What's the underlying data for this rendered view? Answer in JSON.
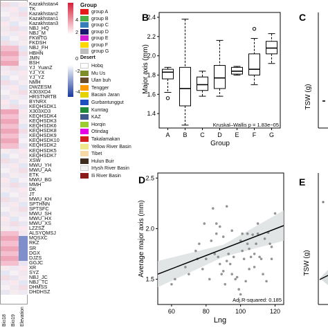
{
  "heatmap": {
    "rows": [
      "Kazakhstan4",
      "TK",
      "Kazakhstan2",
      "Kazakhstan1",
      "Kazakhstan3",
      "NBJ_HQ",
      "NBJ_M",
      "FKWTG",
      "FKDSH",
      "NBJ_FH",
      "HBHN",
      "JMN",
      "BSH",
      "YJ_YuanZ",
      "YJ_YX",
      "YJ_YZ",
      "NMH",
      "DWZESM",
      "X303XD4",
      "HRSTNRTB",
      "BYNRX",
      "KEQHSDK1",
      "X303XD3",
      "KEQHSDK4",
      "KEQHSDK3",
      "KEQHSDK6",
      "KEQHSDK8",
      "KEQHSDK9",
      "KEQHSDK10",
      "KEQHSDK2",
      "KEQHSDK5",
      "KEQHSDK7",
      "XSW",
      "MWU_YH",
      "MWU_AA",
      "ETK",
      "MWU_BG",
      "MMH",
      "DK",
      "JT",
      "MWU_KH",
      "SPTHNN",
      "SPTSFC",
      "MWU_SH",
      "MWU_HX",
      "MWU_XS",
      "LZZSZ",
      "ALSYQMSJ",
      "MQSXC",
      "RKZ",
      "SR",
      "DGX",
      "DJZS",
      "GGJC",
      "XR",
      "SYZ",
      "NBJ_JC",
      "NBJ_TC",
      "DHMSS",
      "DHDHSZ"
    ],
    "columns": [
      "Bio18",
      "Bio19",
      "Elevation"
    ],
    "value_scale": {
      "max": 4,
      "mid_high": 2,
      "zero": 0,
      "mid_low": -2,
      "min": -4
    },
    "colors": {
      "high": "#d6203a",
      "zero": "#ffffff",
      "low": "#1a3a9c"
    }
  },
  "legend": {
    "group_title": "Group",
    "groups": [
      {
        "label": "group A",
        "color": "#e41a1c"
      },
      {
        "label": "group B",
        "color": "#4daf4a"
      },
      {
        "label": "group C",
        "color": "#377eb8"
      },
      {
        "label": "group D",
        "color": "#1a1a6e"
      },
      {
        "label": "group E",
        "color": "#d21ed2"
      },
      {
        "label": "group F",
        "color": "#ffd700"
      },
      {
        "label": "group G",
        "color": "#bfbfbf"
      }
    ],
    "desert_title": "Desert",
    "deserts": [
      {
        "label": "Hobq",
        "color": "#ffffff"
      },
      {
        "label": "Mu Us",
        "color": "#7f8c2a"
      },
      {
        "label": "Ulan buh",
        "color": "#6a4c2a"
      },
      {
        "label": "Tengger",
        "color": "#ff9900"
      },
      {
        "label": "Bacain Jaran",
        "color": "#e6d200"
      },
      {
        "label": "Gurbantunggut",
        "color": "#1f4fbf"
      },
      {
        "label": "Kumtag",
        "color": "#1f8a3a"
      },
      {
        "label": "KAZ",
        "color": "#3f5a8a"
      },
      {
        "label": "Horqin",
        "color": "#9acd32"
      },
      {
        "label": "Otindag",
        "color": "#e600e6"
      },
      {
        "label": "Takalamakan",
        "color": "#d11d1d"
      },
      {
        "label": "Yellow River Basin",
        "color": "#f0e68c"
      },
      {
        "label": "Tibet",
        "color": "#f7d9a8"
      },
      {
        "label": "Hulun Buir",
        "color": "#3d2b1f"
      },
      {
        "label": "Irtysh River Basin",
        "color": "#f2f2f2"
      },
      {
        "label": "Ili River Basin",
        "color": "#8b1a1a"
      }
    ]
  },
  "panels": {
    "B": {
      "letter": "B",
      "ylabel": "Major axis (mm)",
      "xlabel": "Group",
      "annotation": "Kruskal–Wallis p = 1.83e−05"
    },
    "C": {
      "letter": "C",
      "ylabel": "TSW (g)"
    },
    "D": {
      "letter": "D",
      "ylabel": "Average major axis (mm)",
      "xlabel": "Lng",
      "annotation": "Adj.R-squared: 0.185"
    },
    "E": {
      "letter": "E",
      "ylabel": "TSW (g)"
    }
  },
  "chart_data": [
    {
      "type": "box",
      "panel": "B",
      "categories": [
        "A",
        "B",
        "C",
        "D",
        "E",
        "F",
        "G"
      ],
      "boxes": [
        {
          "min": 1.62,
          "q1": 1.76,
          "median": 1.83,
          "q3": 1.86,
          "max": 1.88,
          "outliers": [
            1.56
          ]
        },
        {
          "min": 1.28,
          "q1": 1.48,
          "median": 1.66,
          "q3": 1.88,
          "max": 2.38,
          "outliers": []
        },
        {
          "min": 1.58,
          "q1": 1.64,
          "median": 1.7,
          "q3": 1.78,
          "max": 1.84,
          "outliers": []
        },
        {
          "min": 1.58,
          "q1": 1.66,
          "median": 1.77,
          "q3": 1.9,
          "max": 2.16,
          "outliers": []
        },
        {
          "min": 1.8,
          "q1": 1.81,
          "median": 1.84,
          "q3": 1.88,
          "max": 1.89,
          "outliers": []
        },
        {
          "min": 1.7,
          "q1": 1.8,
          "median": 1.86,
          "q3": 2.02,
          "max": 2.18,
          "outliers": [
            2.28
          ]
        },
        {
          "min": 1.92,
          "q1": 2.02,
          "median": 2.08,
          "q3": 2.15,
          "max": 2.23,
          "outliers": []
        }
      ],
      "ylim": [
        1.25,
        2.45
      ],
      "yticks": [
        1.4,
        1.6,
        1.8,
        2.0,
        2.2,
        2.4
      ],
      "ylabel": "Major axis (mm)",
      "xlabel": "Group"
    },
    {
      "type": "scatter",
      "panel": "D",
      "x": [
        60,
        62,
        68,
        70,
        74,
        75,
        76,
        78,
        79,
        80,
        82,
        83,
        84,
        85,
        86,
        86,
        87,
        88,
        88,
        89,
        90,
        90,
        91,
        92,
        92,
        93,
        94,
        95,
        95,
        96,
        97,
        98,
        99,
        100,
        100,
        101,
        101,
        102,
        103,
        104,
        104,
        105,
        105,
        106,
        107,
        108,
        108,
        109,
        110,
        110,
        111,
        112,
        113,
        114,
        115,
        116,
        117,
        118,
        118,
        120
      ],
      "y": [
        1.45,
        1.5,
        1.62,
        1.55,
        1.78,
        1.7,
        1.85,
        1.6,
        2.05,
        1.7,
        1.5,
        1.88,
        2.2,
        1.75,
        1.95,
        2.05,
        1.72,
        1.65,
        2.02,
        1.55,
        1.92,
        1.58,
        1.45,
        2.22,
        1.68,
        1.75,
        1.65,
        1.98,
        1.55,
        1.72,
        1.5,
        1.52,
        1.4,
        1.35,
        1.88,
        1.95,
        1.78,
        1.7,
        1.48,
        1.95,
        1.85,
        1.8,
        1.6,
        1.72,
        1.94,
        1.75,
        1.62,
        1.85,
        2.05,
        1.95,
        1.72,
        1.7,
        1.55,
        1.9,
        1.48,
        1.96,
        1.85,
        1.82,
        1.7,
        2.15
      ],
      "fit": {
        "x": [
          52,
          125
        ],
        "y": [
          1.55,
          2.03
        ]
      },
      "xlim": [
        52,
        125
      ],
      "ylim": [
        1.25,
        2.55
      ],
      "xticks": [
        60,
        80,
        100,
        120
      ],
      "yticks": [
        1.5,
        2.0,
        2.5
      ],
      "xlabel": "Lng",
      "ylabel": "Average major axis (mm)"
    }
  ]
}
